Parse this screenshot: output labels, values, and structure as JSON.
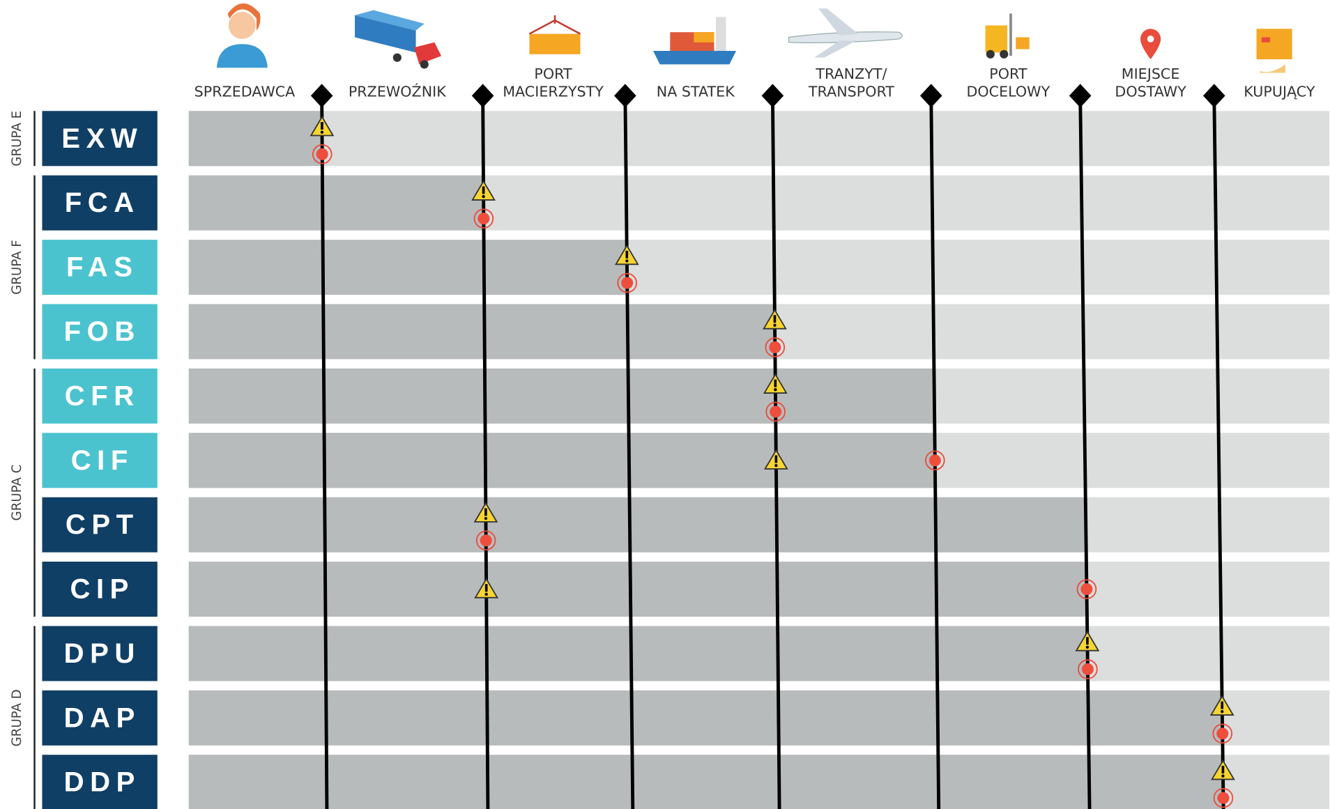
{
  "header": {
    "columns": [
      {
        "lines": [
          "SPRZEDAWCA"
        ]
      },
      {
        "lines": [
          "PRZEWOŹNIK"
        ]
      },
      {
        "lines": [
          "PORT",
          "MACIERZYSTY"
        ]
      },
      {
        "lines": [
          "NA STATEK"
        ]
      },
      {
        "lines": [
          "TRANZYT/",
          "TRANSPORT"
        ]
      },
      {
        "lines": [
          "PORT",
          "DOCELOWY"
        ]
      },
      {
        "lines": [
          "MIEJSCE",
          "DOSTAWY"
        ]
      },
      {
        "lines": [
          "KUPUJĄCY"
        ]
      }
    ]
  },
  "groups": [
    {
      "label": "GRUPA E"
    },
    {
      "label": "GRUPA F"
    },
    {
      "label": "GRUPA C"
    },
    {
      "label": "GRUPA D"
    }
  ],
  "rows": [
    {
      "code": "EXW",
      "color": "#103f66"
    },
    {
      "code": "FCA",
      "color": "#103f66"
    },
    {
      "code": "FAS",
      "color": "#4bc3cf"
    },
    {
      "code": "FOB",
      "color": "#4bc3cf"
    },
    {
      "code": "CFR",
      "color": "#4bc3cf"
    },
    {
      "code": "CIF",
      "color": "#4bc3cf"
    },
    {
      "code": "CPT",
      "color": "#103f66"
    },
    {
      "code": "CIP",
      "color": "#103f66"
    },
    {
      "code": "DPU",
      "color": "#103f66"
    },
    {
      "code": "DAP",
      "color": "#103f66"
    },
    {
      "code": "DDP",
      "color": "#103f66"
    }
  ]
}
